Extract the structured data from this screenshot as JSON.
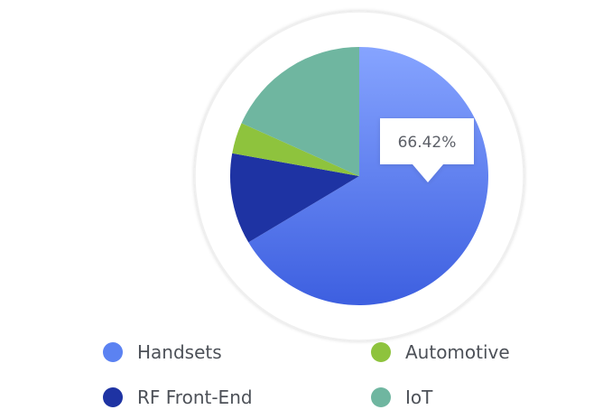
{
  "chart_data": {
    "type": "pie",
    "categories": [
      "Handsets",
      "RF Front-End",
      "Automotive",
      "IoT"
    ],
    "values": [
      66.42,
      11.4,
      3.9,
      18.28
    ],
    "colors": [
      "#4f78f0",
      "#1e33a3",
      "#8ec33d",
      "#6fb6a0"
    ],
    "legend_placement": "bottom",
    "tooltip": {
      "category": "Handsets",
      "label": "66.42%"
    }
  }
}
